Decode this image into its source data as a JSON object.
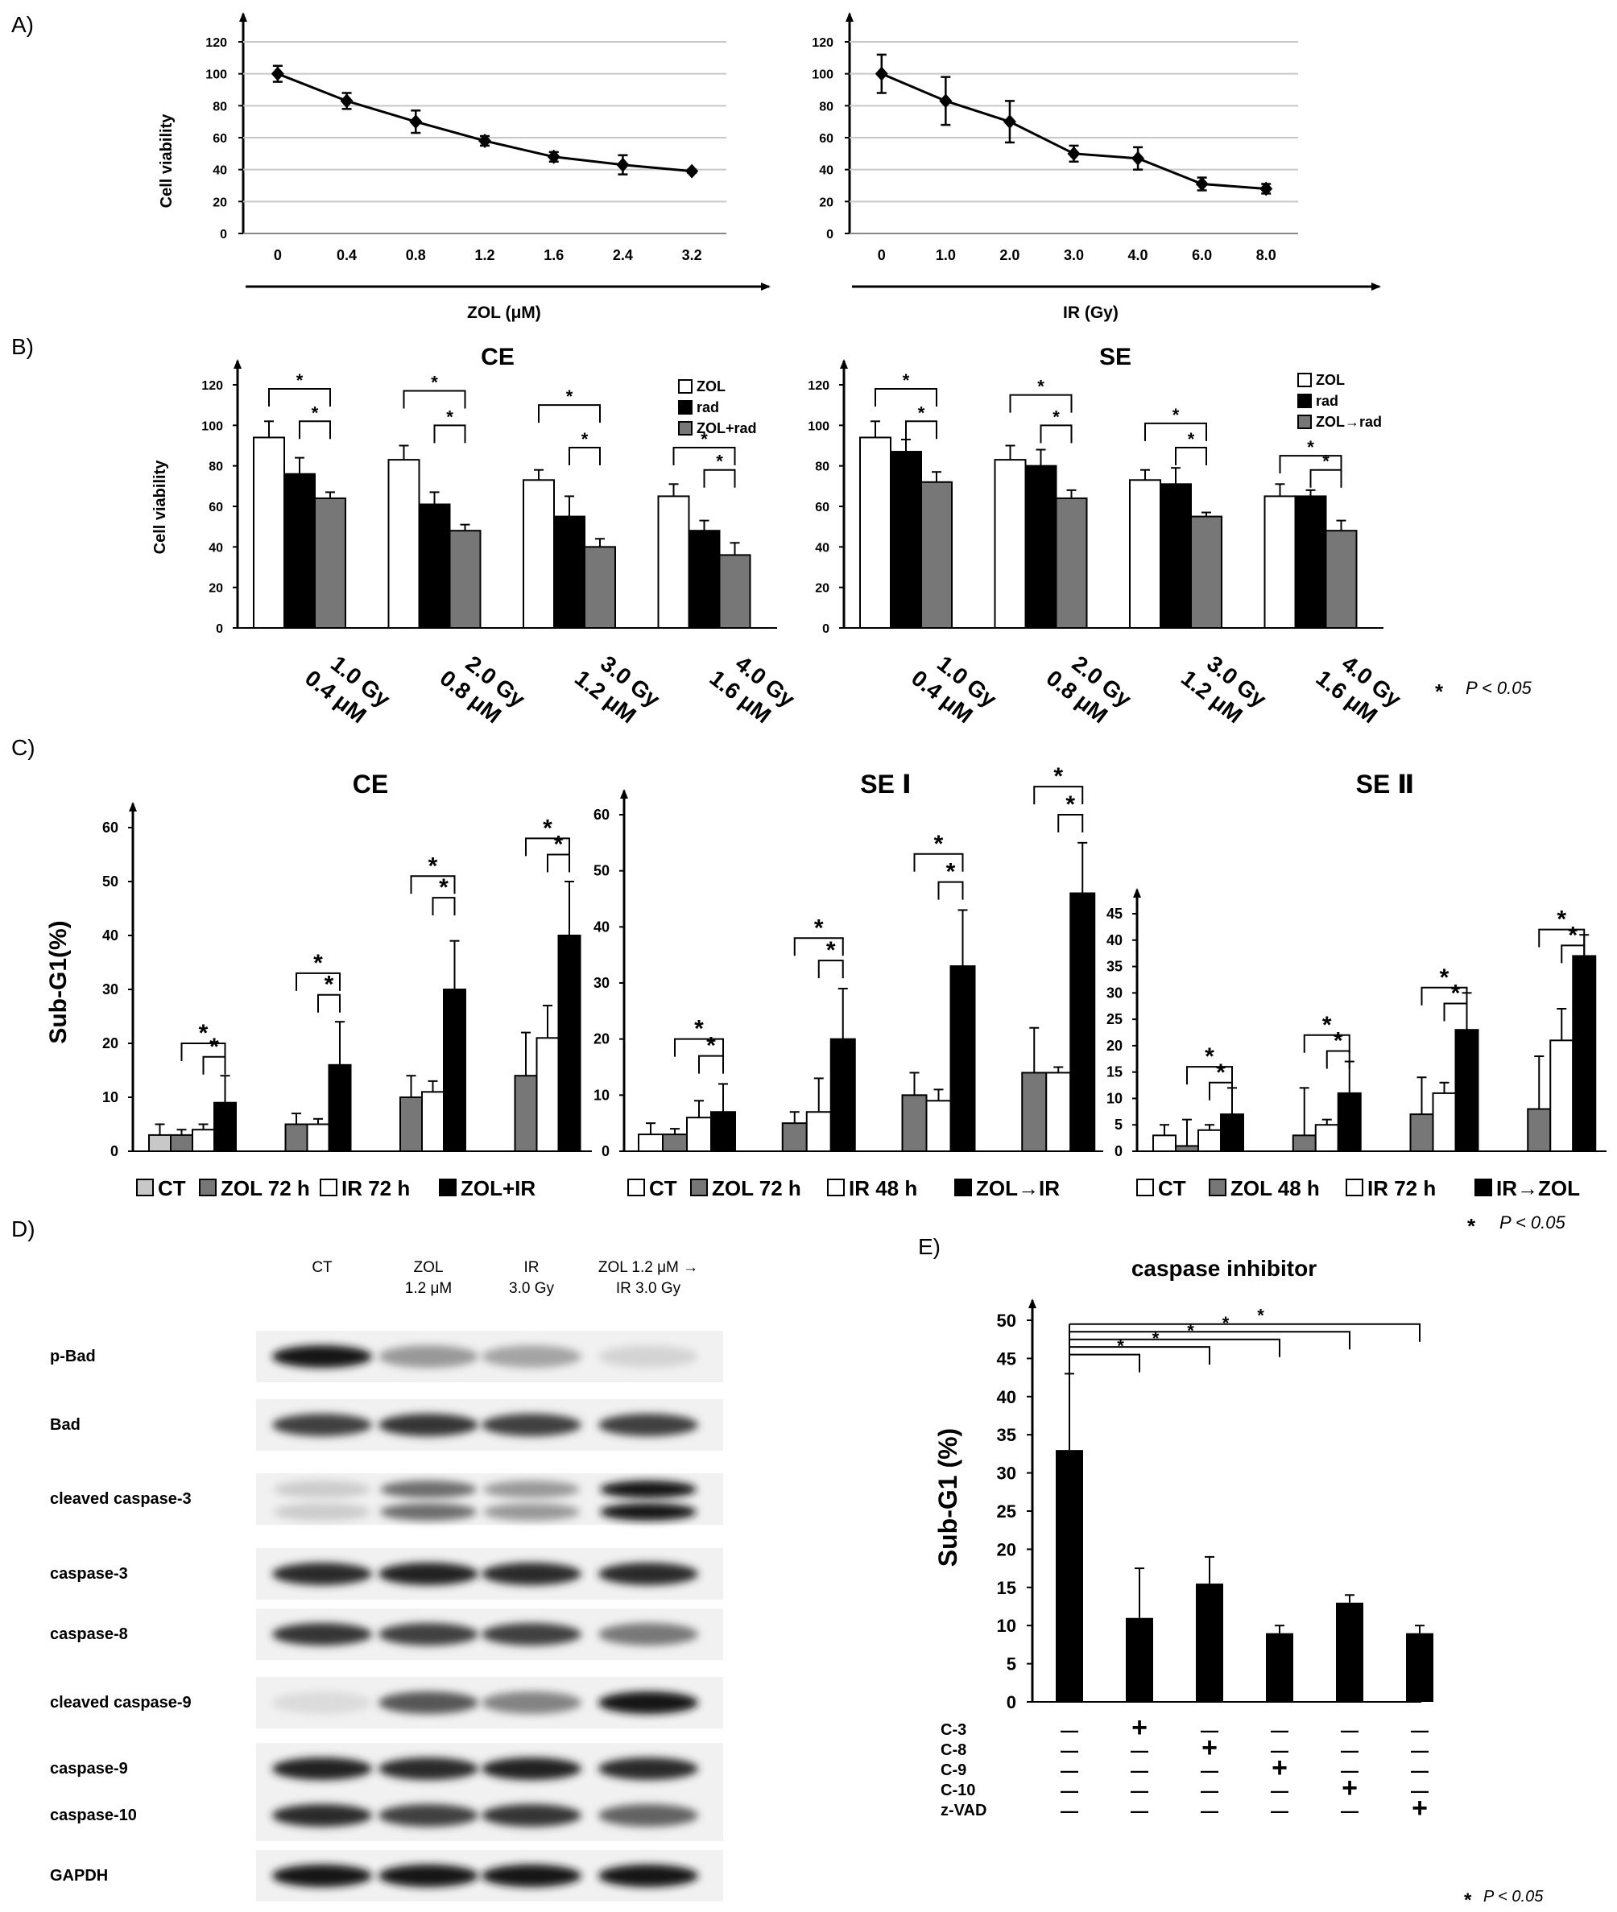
{
  "figure": {
    "panel_labels": [
      "A)",
      "B)",
      "C)",
      "D)",
      "E)"
    ],
    "significance_note": "P < 0.05",
    "significance_star": "*"
  },
  "colors": {
    "black": "#000000",
    "white": "#ffffff",
    "gray": "#777777",
    "light_gray": "#c8c8c8"
  },
  "chart_data": [
    {
      "id": "A_left",
      "panel": "A)",
      "type": "line",
      "title": "",
      "xlabel": "ZOL (μM)",
      "ylabel": "Cell viability",
      "x": [
        "0",
        "0.4",
        "0.8",
        "1.2",
        "1.6",
        "2.4",
        "3.2"
      ],
      "y": [
        100,
        83,
        70,
        58,
        48,
        43,
        39
      ],
      "err": [
        5,
        5,
        7,
        3,
        3,
        6,
        1
      ],
      "yticks": [
        "0",
        "20",
        "40",
        "60",
        "80",
        "100",
        "120"
      ],
      "ylim": [
        0,
        120
      ],
      "grid": true
    },
    {
      "id": "A_right",
      "panel": "",
      "type": "line",
      "title": "",
      "xlabel": "IR (Gy)",
      "ylabel": "",
      "x": [
        "0",
        "1.0",
        "2.0",
        "3.0",
        "4.0",
        "6.0",
        "8.0"
      ],
      "y": [
        100,
        83,
        70,
        50,
        47,
        31,
        28
      ],
      "err": [
        12,
        15,
        13,
        5,
        7,
        4,
        3
      ],
      "yticks": [
        "0",
        "20",
        "40",
        "60",
        "80",
        "100",
        "120"
      ],
      "ylim": [
        0,
        120
      ],
      "grid": true
    },
    {
      "id": "B_CE",
      "panel": "B)",
      "type": "bar",
      "title": "CE",
      "ylabel": "Cell viability",
      "categories": [
        [
          "1.0 Gy",
          "0.4 μM"
        ],
        [
          "2.0 Gy",
          "0.8 μM"
        ],
        [
          "3.0 Gy",
          "1.2 μM"
        ],
        [
          "4.0 Gy",
          "1.6 μM"
        ]
      ],
      "series": [
        {
          "name": "ZOL",
          "color": "#ffffff",
          "values": [
            94,
            83,
            73,
            65
          ],
          "err": [
            8,
            7,
            5,
            6
          ]
        },
        {
          "name": "rad",
          "color": "#000000",
          "values": [
            76,
            61,
            55,
            48
          ],
          "err": [
            8,
            6,
            10,
            5
          ]
        },
        {
          "name": "ZOL+rad",
          "color": "#777777",
          "values": [
            64,
            48,
            40,
            36
          ],
          "err": [
            3,
            3,
            4,
            6
          ]
        }
      ],
      "yticks": [
        "0",
        "20",
        "40",
        "60",
        "80",
        "100",
        "120"
      ],
      "ylim": [
        0,
        120
      ],
      "brackets": [
        [
          0,
          2,
          118
        ],
        [
          1,
          2,
          102
        ],
        [
          0,
          2,
          117
        ],
        [
          1,
          2,
          100
        ],
        [
          0,
          2,
          110
        ],
        [
          1,
          2,
          89
        ],
        [
          0,
          2,
          89
        ],
        [
          1,
          2,
          78
        ]
      ],
      "bracket_group": [
        0,
        0,
        1,
        1,
        2,
        2,
        3,
        3
      ],
      "legend": "right"
    },
    {
      "id": "B_SE",
      "panel": "",
      "type": "bar",
      "title": "SE",
      "ylabel": "",
      "categories": [
        [
          "1.0 Gy",
          "0.4 μM"
        ],
        [
          "2.0 Gy",
          "0.8 μM"
        ],
        [
          "3.0 Gy",
          "1.2 μM"
        ],
        [
          "4.0 Gy",
          "1.6 μM"
        ]
      ],
      "series": [
        {
          "name": "ZOL",
          "color": "#ffffff",
          "values": [
            94,
            83,
            73,
            65
          ],
          "err": [
            8,
            7,
            5,
            6
          ]
        },
        {
          "name": "rad",
          "color": "#000000",
          "values": [
            87,
            80,
            71,
            65
          ],
          "err": [
            6,
            8,
            8,
            3
          ]
        },
        {
          "name": "ZOL→rad",
          "color": "#777777",
          "values": [
            72,
            64,
            55,
            48
          ],
          "err": [
            5,
            4,
            2,
            5
          ]
        }
      ],
      "yticks": [
        "0",
        "20",
        "40",
        "60",
        "80",
        "100",
        "120"
      ],
      "ylim": [
        0,
        120
      ],
      "brackets": [
        [
          0,
          2,
          118
        ],
        [
          1,
          2,
          102
        ],
        [
          0,
          2,
          115
        ],
        [
          1,
          2,
          100
        ],
        [
          0,
          2,
          101
        ],
        [
          1,
          2,
          89
        ],
        [
          0,
          2,
          85
        ],
        [
          1,
          2,
          78
        ]
      ],
      "bracket_group": [
        0,
        0,
        1,
        1,
        2,
        2,
        3,
        3
      ],
      "legend": "right"
    },
    {
      "id": "C_CE",
      "panel": "C)",
      "type": "bar",
      "title": "CE",
      "ylabel": "Sub-G1(%)",
      "categories": [
        "",
        "",
        "",
        ""
      ],
      "series": [
        {
          "name": "CT",
          "color": "#c8c8c8",
          "values": [
            3,
            0,
            0,
            0
          ],
          "err": [
            2,
            0,
            0,
            0
          ]
        },
        {
          "name": "ZOL 72 h",
          "color": "#777777",
          "values": [
            3,
            5,
            10,
            14
          ],
          "err": [
            1,
            2,
            4,
            8
          ]
        },
        {
          "name": "IR 72 h",
          "color": "#ffffff",
          "values": [
            4,
            5,
            11,
            21
          ],
          "err": [
            1,
            1,
            2,
            6
          ]
        },
        {
          "name": "ZOL+IR",
          "color": "#000000",
          "values": [
            9,
            16,
            30,
            40
          ],
          "err": [
            5,
            8,
            9,
            10
          ]
        }
      ],
      "group_slots": [
        [
          0,
          1,
          2,
          3
        ],
        [
          1,
          2,
          3
        ],
        [
          1,
          2,
          3
        ],
        [
          1,
          2,
          3
        ]
      ],
      "yticks": [
        "0",
        "10",
        "20",
        "30",
        "40",
        "50",
        "60"
      ],
      "ylim": [
        0,
        60
      ],
      "brackets": [
        [
          1,
          3,
          20
        ],
        [
          2,
          3,
          17.5
        ],
        [
          1,
          3,
          33
        ],
        [
          2,
          3,
          29
        ],
        [
          1,
          3,
          51
        ],
        [
          2,
          3,
          47
        ],
        [
          1,
          3,
          58
        ],
        [
          2,
          3,
          55
        ]
      ],
      "bracket_group": [
        0,
        0,
        1,
        1,
        2,
        2,
        3,
        3
      ]
    },
    {
      "id": "C_SEI",
      "panel": "",
      "type": "bar",
      "title": "SE  Ⅰ",
      "ylabel": "",
      "categories": [
        "",
        "",
        "",
        ""
      ],
      "series": [
        {
          "name": "CT",
          "color": "#ffffff",
          "values": [
            3,
            0,
            0,
            0
          ],
          "err": [
            2,
            0,
            0,
            0
          ]
        },
        {
          "name": "ZOL 72 h",
          "color": "#777777",
          "values": [
            3,
            5,
            10,
            14
          ],
          "err": [
            1,
            2,
            4,
            8
          ]
        },
        {
          "name": "IR 48 h",
          "color": "#ffffff",
          "values": [
            6,
            7,
            9,
            14
          ],
          "err": [
            3,
            6,
            2,
            1
          ]
        },
        {
          "name": "ZOL→IR",
          "color": "#000000",
          "values": [
            7,
            20,
            33,
            46
          ],
          "err": [
            5,
            9,
            10,
            9
          ]
        }
      ],
      "group_slots": [
        [
          0,
          1,
          2,
          3
        ],
        [
          1,
          2,
          3
        ],
        [
          1,
          2,
          3
        ],
        [
          1,
          2,
          3
        ]
      ],
      "yticks": [
        "0",
        "10",
        "20",
        "30",
        "40",
        "50",
        "60"
      ],
      "ylim": [
        0,
        60
      ],
      "brackets": [
        [
          1,
          3,
          20
        ],
        [
          2,
          3,
          17
        ],
        [
          1,
          3,
          38
        ],
        [
          2,
          3,
          34
        ],
        [
          1,
          3,
          53
        ],
        [
          2,
          3,
          48
        ],
        [
          1,
          3,
          65
        ],
        [
          2,
          3,
          60
        ]
      ],
      "bracket_group": [
        0,
        0,
        1,
        1,
        2,
        2,
        3,
        3
      ]
    },
    {
      "id": "C_SEII",
      "panel": "",
      "type": "bar",
      "title": "SE  Ⅱ",
      "ylabel": "",
      "categories": [
        "",
        "",
        "",
        ""
      ],
      "series": [
        {
          "name": "CT",
          "color": "#ffffff",
          "values": [
            3,
            0,
            0,
            0
          ],
          "err": [
            2,
            0,
            0,
            0
          ]
        },
        {
          "name": "ZOL 48 h",
          "color": "#777777",
          "values": [
            1,
            3,
            7,
            8
          ],
          "err": [
            5,
            9,
            7,
            10
          ]
        },
        {
          "name": "IR 72 h",
          "color": "#ffffff",
          "values": [
            4,
            5,
            11,
            21
          ],
          "err": [
            1,
            1,
            2,
            6
          ]
        },
        {
          "name": "IR→ZOL",
          "color": "#000000",
          "values": [
            7,
            11,
            23,
            37
          ],
          "err": [
            5,
            6,
            7,
            4
          ]
        }
      ],
      "group_slots": [
        [
          0,
          1,
          2,
          3
        ],
        [
          1,
          2,
          3
        ],
        [
          1,
          2,
          3
        ],
        [
          1,
          2,
          3
        ]
      ],
      "yticks": [
        "0",
        "5",
        "10",
        "15",
        "20",
        "25",
        "30",
        "35",
        "40",
        "45"
      ],
      "ylim": [
        0,
        45
      ],
      "brackets": [
        [
          1,
          3,
          16
        ],
        [
          2,
          3,
          13
        ],
        [
          1,
          3,
          22
        ],
        [
          2,
          3,
          19
        ],
        [
          1,
          3,
          31
        ],
        [
          2,
          3,
          28
        ],
        [
          1,
          3,
          42
        ],
        [
          2,
          3,
          39
        ]
      ],
      "bracket_group": [
        0,
        0,
        1,
        1,
        2,
        2,
        3,
        3
      ]
    },
    {
      "id": "E",
      "panel": "E)",
      "type": "bar",
      "title": "caspase inhibitor",
      "ylabel": "Sub-G1 (%)",
      "values": [
        33,
        11,
        15.5,
        9,
        13,
        9
      ],
      "err": [
        10,
        6.5,
        3.5,
        1,
        1,
        1
      ],
      "yticks": [
        "0",
        "5",
        "10",
        "15",
        "20",
        "25",
        "30",
        "35",
        "40",
        "45",
        "50"
      ],
      "ylim": [
        0,
        50
      ],
      "brackets": [
        [
          0,
          1,
          45.5
        ],
        [
          0,
          2,
          46.5
        ],
        [
          0,
          3,
          47.5
        ],
        [
          0,
          4,
          48.5
        ],
        [
          0,
          5,
          49.5
        ]
      ],
      "conditions": [
        {
          "label": "C-3",
          "signs": [
            "—",
            "+",
            "—",
            "—",
            "—",
            "—"
          ]
        },
        {
          "label": "C-8",
          "signs": [
            "—",
            "—",
            "+",
            "—",
            "—",
            "—"
          ]
        },
        {
          "label": "C-9",
          "signs": [
            "—",
            "—",
            "—",
            "+",
            "—",
            "—"
          ]
        },
        {
          "label": "C-10",
          "signs": [
            "—",
            "—",
            "—",
            "—",
            "+",
            "—"
          ]
        },
        {
          "label": "z-VAD",
          "signs": [
            "—",
            "—",
            "—",
            "—",
            "—",
            "+"
          ]
        }
      ]
    }
  ],
  "western_blot": {
    "lanes": [
      [
        "CT"
      ],
      [
        "ZOL",
        "1.2 μM"
      ],
      [
        "IR",
        "3.0 Gy"
      ],
      [
        "ZOL 1.2  μM →",
        "IR 3.0 Gy"
      ]
    ],
    "proteins": [
      {
        "label": "p-Bad",
        "intensity": [
          0.95,
          0.35,
          0.3,
          0.08
        ],
        "double": false
      },
      {
        "label": "Bad",
        "intensity": [
          0.75,
          0.8,
          0.75,
          0.75
        ],
        "double": false
      },
      {
        "label": "cleaved caspase-3",
        "intensity": [
          0.12,
          0.55,
          0.35,
          0.95
        ],
        "double": true
      },
      {
        "label": "caspase-3",
        "intensity": [
          0.85,
          0.9,
          0.85,
          0.85
        ],
        "double": false
      },
      {
        "label": "caspase-8",
        "intensity": [
          0.8,
          0.75,
          0.75,
          0.5
        ],
        "double": false
      },
      {
        "label": "cleaved caspase-9",
        "intensity": [
          0.05,
          0.65,
          0.45,
          0.95
        ],
        "double": false
      },
      {
        "label": "caspase-9",
        "intensity": [
          0.9,
          0.85,
          0.9,
          0.85
        ],
        "double": false
      },
      {
        "label": "caspase-10",
        "intensity": [
          0.85,
          0.75,
          0.8,
          0.6
        ],
        "double": false
      },
      {
        "label": "GAPDH",
        "intensity": [
          0.95,
          0.95,
          0.95,
          0.95
        ],
        "double": false
      }
    ]
  }
}
